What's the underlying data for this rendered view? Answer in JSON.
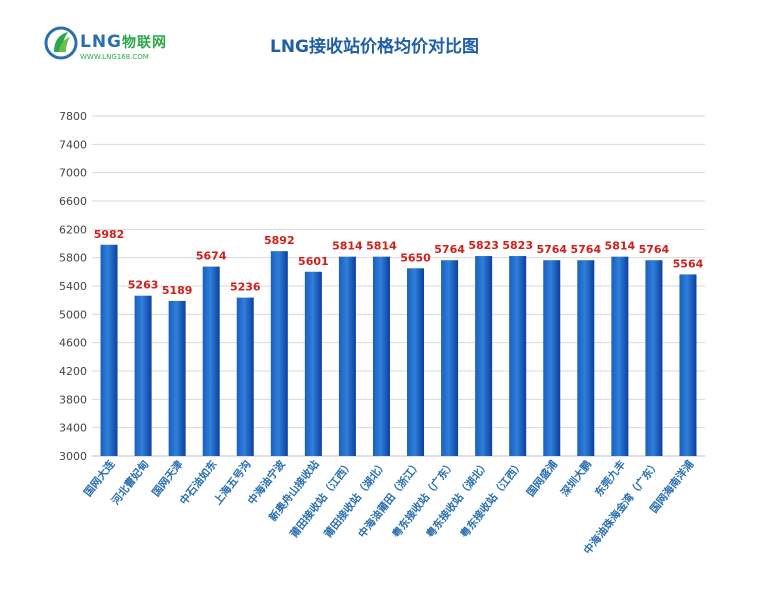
{
  "logo": {
    "brand": "LNG",
    "brand_cn": "物联网",
    "url": "WWW.LNG168.COM"
  },
  "chart_data": {
    "type": "bar",
    "title": "LNG接收站价格均价对比图",
    "categories": [
      "国网大连",
      "河北曹妃甸",
      "国网天津",
      "中石油如东",
      "上海五号沟",
      "中海油宁波",
      "新奥舟山接收站",
      "莆田接收站（江西）",
      "莆田接收站（湖北）",
      "中海油莆田（浙江）",
      "粤东接收站（广东）",
      "粤东接收站（湖北）",
      "粤东接收站（江西）",
      "国网盛浦",
      "深圳大鹏",
      "东莞九丰",
      "中海油珠海金湾（广东）",
      "国网海南洋浦"
    ],
    "values": [
      5982,
      5263,
      5189,
      5674,
      5236,
      5892,
      5601,
      5814,
      5814,
      5650,
      5764,
      5823,
      5823,
      5764,
      5764,
      5814,
      5764,
      5564
    ],
    "data_labels": [
      "5982",
      "5263",
      "5189",
      "5674",
      "5236",
      "5892",
      "5601",
      "5814",
      "5814",
      "5650",
      "5764",
      "5823",
      "5823",
      "5764",
      "5764",
      "5814",
      "5764",
      "5564"
    ],
    "yticks": [
      "3000",
      "3400",
      "3800",
      "4200",
      "4600",
      "5000",
      "5400",
      "5800",
      "6200",
      "6600",
      "7000",
      "7400",
      "7800"
    ],
    "ylim": [
      3000,
      7800
    ],
    "xlabel": "",
    "ylabel": "",
    "grid": true,
    "legend": "none",
    "colors": {
      "bar_light": "#2f7fd8",
      "bar_mid": "#1a5fc0",
      "bar_dark": "#0d3fa0",
      "label": "#d0201c",
      "axis_text": "#444444",
      "xtick_text": "#2a6fb0",
      "grid": "#d9d9d9"
    }
  }
}
